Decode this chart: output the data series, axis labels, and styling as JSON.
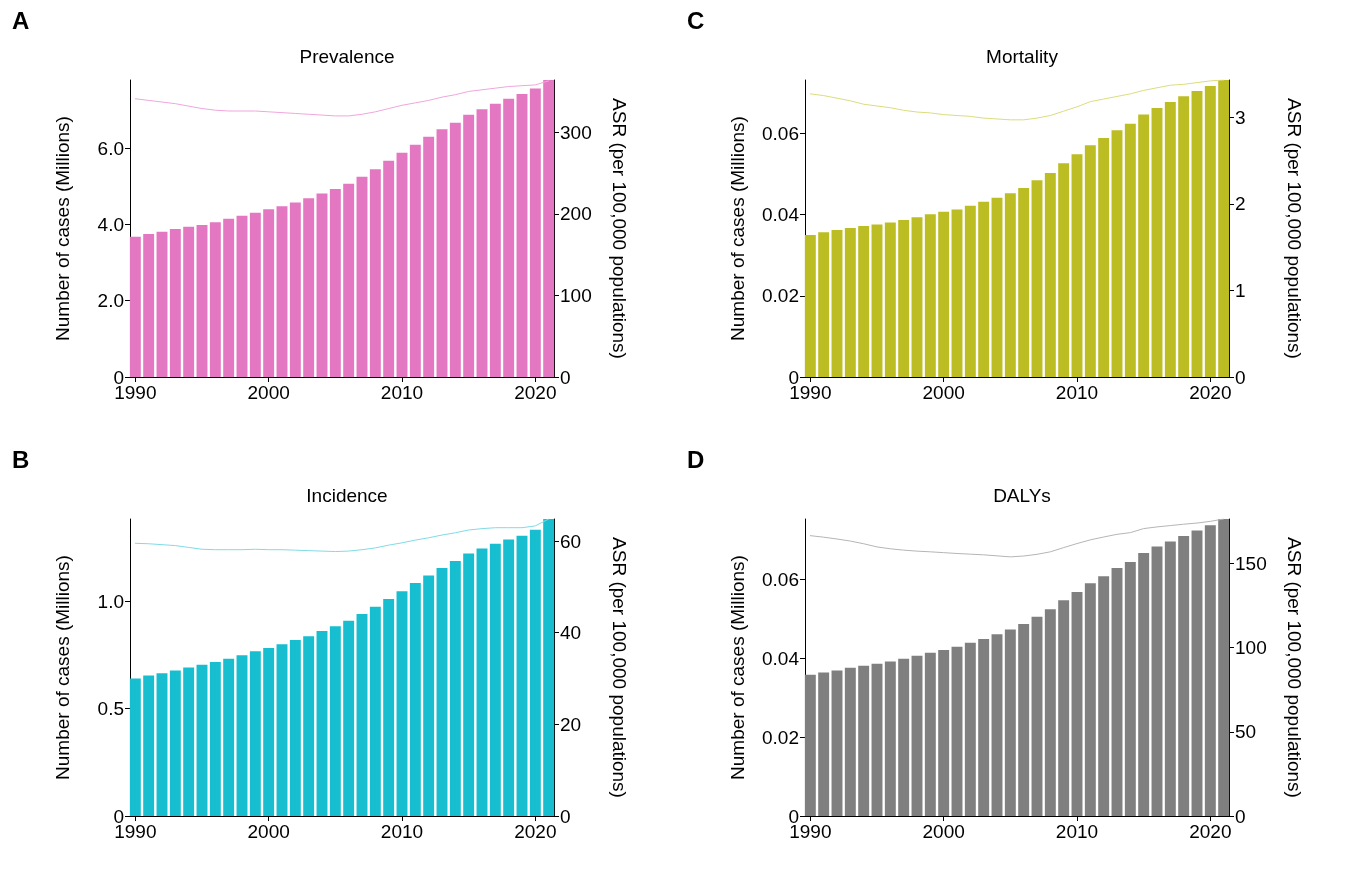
{
  "chart_data": [
    {
      "type": "bar",
      "title": "Prevalence",
      "annotations": [
        "A"
      ],
      "ylabel": "Number of cases (Millions)",
      "y2label": "ASR (per 100,000 populations)",
      "marker": "none",
      "line_style": "solid",
      "x": [
        1990,
        1991,
        1992,
        1993,
        1994,
        1995,
        1996,
        1997,
        1998,
        1999,
        2000,
        2001,
        2002,
        2003,
        2004,
        2005,
        2006,
        2007,
        2008,
        2009,
        2010,
        2011,
        2012,
        2013,
        2014,
        2015,
        2016,
        2017,
        2018,
        2019,
        2020,
        2021
      ],
      "xlim": [
        1989.6,
        2021.4
      ],
      "xticks": [
        1990,
        2000,
        2010,
        2020
      ],
      "ylim": [
        0,
        7.79
      ],
      "yticks": [
        0,
        {
          "value": 2,
          "label": "2.0"
        },
        {
          "value": 4,
          "label": "4.0"
        },
        {
          "value": 6,
          "label": "6.0"
        }
      ],
      "y2lim": [
        0,
        364
      ],
      "y2ticks": [
        0,
        100,
        200,
        300
      ],
      "series": [
        {
          "color": "#e377c2",
          "values": [
            3.68,
            3.75,
            3.81,
            3.88,
            3.94,
            3.99,
            4.06,
            4.15,
            4.23,
            4.31,
            4.4,
            4.48,
            4.58,
            4.69,
            4.81,
            4.93,
            5.07,
            5.25,
            5.45,
            5.67,
            5.88,
            6.09,
            6.3,
            6.5,
            6.67,
            6.88,
            7.02,
            7.17,
            7.3,
            7.42,
            7.57,
            7.79
          ]
        },
        {
          "type": "line",
          "axis": "y2",
          "color": "#f0a6dc",
          "values": [
            341,
            339,
            337,
            335,
            332,
            329,
            327,
            326,
            326,
            326,
            325,
            324,
            323,
            322,
            321,
            320,
            320,
            322,
            325,
            329,
            333,
            336,
            339,
            343,
            346,
            350,
            352,
            354,
            356,
            357,
            358,
            363
          ]
        }
      ]
    },
    {
      "type": "bar",
      "title": "Mortality",
      "annotations": [
        "C"
      ],
      "ylabel": "Number of cases (Millions)",
      "y2label": "ASR (per 100,000 populations)",
      "marker": "none",
      "line_style": "solid",
      "x": [
        1990,
        1991,
        1992,
        1993,
        1994,
        1995,
        1996,
        1997,
        1998,
        1999,
        2000,
        2001,
        2002,
        2003,
        2004,
        2005,
        2006,
        2007,
        2008,
        2009,
        2010,
        2011,
        2012,
        2013,
        2014,
        2015,
        2016,
        2017,
        2018,
        2019,
        2020,
        2021
      ],
      "xlim": [
        1989.6,
        2021.4
      ],
      "xticks": [
        1990,
        2000,
        2010,
        2020
      ],
      "ylim": [
        0,
        0.0732
      ],
      "yticks": [
        0,
        0.02,
        0.04,
        0.06
      ],
      "y2lim": [
        0,
        3.43
      ],
      "y2ticks": [
        0,
        1,
        2,
        3
      ],
      "series": [
        {
          "color": "#bcbd22",
          "values": [
            0.035,
            0.0357,
            0.0362,
            0.0367,
            0.0372,
            0.0376,
            0.0381,
            0.0387,
            0.0394,
            0.0401,
            0.0407,
            0.0413,
            0.0422,
            0.0432,
            0.0442,
            0.0453,
            0.0466,
            0.0485,
            0.0503,
            0.0527,
            0.0549,
            0.0571,
            0.0589,
            0.0608,
            0.0624,
            0.0647,
            0.0663,
            0.0678,
            0.0692,
            0.0705,
            0.0717,
            0.0732
          ]
        },
        {
          "type": "line",
          "axis": "y2",
          "color": "#dcdc7e",
          "values": [
            3.27,
            3.25,
            3.22,
            3.19,
            3.15,
            3.13,
            3.11,
            3.08,
            3.06,
            3.05,
            3.03,
            3.02,
            3.01,
            2.99,
            2.98,
            2.97,
            2.97,
            2.99,
            3.02,
            3.07,
            3.12,
            3.18,
            3.21,
            3.24,
            3.27,
            3.31,
            3.34,
            3.37,
            3.38,
            3.4,
            3.42,
            3.43
          ]
        }
      ]
    },
    {
      "type": "bar",
      "title": "Incidence",
      "annotations": [
        "B"
      ],
      "ylabel": "Number of cases (Millions)",
      "y2label": "ASR (per 100,000 populations)",
      "marker": "none",
      "line_style": "solid",
      "x": [
        1990,
        1991,
        1992,
        1993,
        1994,
        1995,
        1996,
        1997,
        1998,
        1999,
        2000,
        2001,
        2002,
        2003,
        2004,
        2005,
        2006,
        2007,
        2008,
        2009,
        2010,
        2011,
        2012,
        2013,
        2014,
        2015,
        2016,
        2017,
        2018,
        2019,
        2020,
        2021
      ],
      "xlim": [
        1989.6,
        2021.4
      ],
      "xticks": [
        1990,
        2000,
        2010,
        2020
      ],
      "ylim": [
        0,
        1.383
      ],
      "yticks": [
        0,
        0.5,
        {
          "value": 1,
          "label": "1.0"
        }
      ],
      "y2lim": [
        0,
        64.8
      ],
      "y2ticks": [
        0,
        20,
        40,
        60
      ],
      "series": [
        {
          "color": "#17becf",
          "values": [
            0.64,
            0.654,
            0.665,
            0.678,
            0.691,
            0.704,
            0.717,
            0.732,
            0.749,
            0.767,
            0.782,
            0.8,
            0.819,
            0.837,
            0.861,
            0.884,
            0.909,
            0.941,
            0.974,
            1.011,
            1.046,
            1.085,
            1.12,
            1.155,
            1.187,
            1.222,
            1.246,
            1.268,
            1.287,
            1.305,
            1.333,
            1.383
          ]
        },
        {
          "type": "line",
          "axis": "y2",
          "color": "#80dbe6",
          "values": [
            59.5,
            59.4,
            59.2,
            59.0,
            58.6,
            58.2,
            58.1,
            58.1,
            58.1,
            58.2,
            58.1,
            58.1,
            58.0,
            57.9,
            57.8,
            57.7,
            57.8,
            58.1,
            58.5,
            59.1,
            59.6,
            60.2,
            60.7,
            61.3,
            61.8,
            62.4,
            62.7,
            62.9,
            62.9,
            62.9,
            63.3,
            64.8
          ]
        }
      ]
    },
    {
      "type": "bar",
      "title": "DALYs",
      "annotations": [
        "D"
      ],
      "ylabel": "Number of cases (Millions)",
      "y2label": "ASR (per 100,000 populations)",
      "marker": "none",
      "line_style": "solid",
      "x": [
        1990,
        1991,
        1992,
        1993,
        1994,
        1995,
        1996,
        1997,
        1998,
        1999,
        2000,
        2001,
        2002,
        2003,
        2004,
        2005,
        2006,
        2007,
        2008,
        2009,
        2010,
        2011,
        2012,
        2013,
        2014,
        2015,
        2016,
        2017,
        2018,
        2019,
        2020,
        2021
      ],
      "xlim": [
        1989.6,
        2021.4
      ],
      "xticks": [
        1990,
        2000,
        2010,
        2020
      ],
      "ylim": [
        0,
        0.0753
      ],
      "yticks": [
        0,
        0.02,
        0.04,
        0.06
      ],
      "y2lim": [
        0,
        176.5
      ],
      "y2ticks": [
        0,
        50,
        100,
        150
      ],
      "series": [
        {
          "color": "#7f7f7f",
          "values": [
            0.0358,
            0.0364,
            0.0369,
            0.0376,
            0.0381,
            0.0386,
            0.0392,
            0.0399,
            0.0406,
            0.0414,
            0.0421,
            0.0429,
            0.0439,
            0.0449,
            0.0461,
            0.0473,
            0.0487,
            0.0505,
            0.0524,
            0.0547,
            0.0568,
            0.059,
            0.0608,
            0.0629,
            0.0644,
            0.0667,
            0.0683,
            0.0696,
            0.071,
            0.0724,
            0.0737,
            0.0753
          ]
        },
        {
          "type": "line",
          "axis": "y2",
          "color": "#b5b5b5",
          "values": [
            166.6,
            165.7,
            164.6,
            163.4,
            161.8,
            159.9,
            158.8,
            158.0,
            157.4,
            157.0,
            156.5,
            156.0,
            155.6,
            155.2,
            154.6,
            154.0,
            154.5,
            155.5,
            157.0,
            159.5,
            161.9,
            164.1,
            165.8,
            167.4,
            168.4,
            170.8,
            171.8,
            172.6,
            173.4,
            174.1,
            175.1,
            176.5
          ]
        }
      ]
    }
  ]
}
